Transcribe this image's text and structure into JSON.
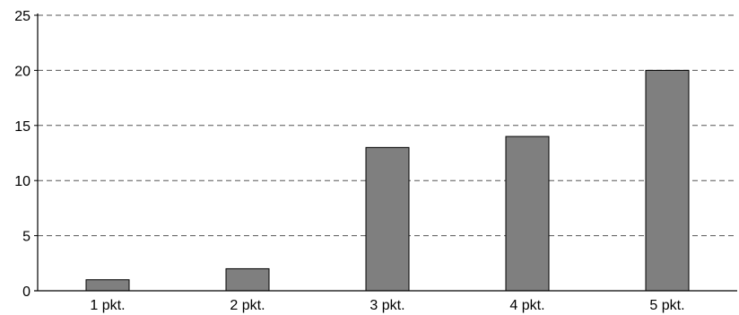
{
  "chart_data": {
    "type": "bar",
    "title": "",
    "xlabel": "",
    "ylabel": "",
    "categories": [
      "1 pkt.",
      "2 pkt.",
      "3 pkt.",
      "4 pkt.",
      "5 pkt."
    ],
    "values": [
      1,
      2,
      13,
      14,
      20
    ],
    "ylim": [
      0,
      25
    ],
    "yticks": [
      "0",
      "5",
      "10",
      "15",
      "20",
      "25"
    ],
    "grid": "horizontal dashed",
    "bar_color": "#7f7f7f",
    "bar_edge_color": "#000000",
    "grid_color": "#555555"
  }
}
